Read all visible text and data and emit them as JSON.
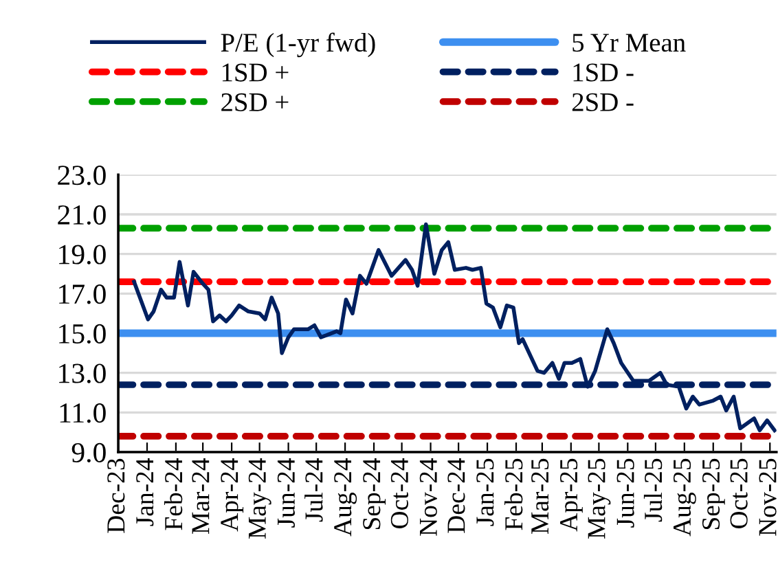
{
  "chart_data": {
    "type": "line",
    "legend": "top",
    "grid": "y",
    "line_style": "solid",
    "marker": "none",
    "ylim": [
      9.0,
      23.0
    ],
    "yticks": [
      {
        "value": 9,
        "label": "9.0"
      },
      {
        "value": 11,
        "label": "11.0"
      },
      {
        "value": 13,
        "label": "13.0"
      },
      {
        "value": 15,
        "label": "15.0"
      },
      {
        "value": 17,
        "label": "17.0"
      },
      {
        "value": 19,
        "label": "19.0"
      },
      {
        "value": 21,
        "label": "21.0"
      },
      {
        "value": 23,
        "label": "23.0"
      }
    ],
    "xlim": [
      "2023-12-01",
      "2025-11-08"
    ],
    "xticks": [
      {
        "value": "2023-12-01",
        "label": "Dec-23"
      },
      {
        "value": "2024-01-01",
        "label": "Jan-24"
      },
      {
        "value": "2024-02-01",
        "label": "Feb-24"
      },
      {
        "value": "2024-03-01",
        "label": "Mar-24"
      },
      {
        "value": "2024-04-01",
        "label": "Apr-24"
      },
      {
        "value": "2024-05-01",
        "label": "May-24"
      },
      {
        "value": "2024-06-01",
        "label": "Jun-24"
      },
      {
        "value": "2024-07-01",
        "label": "Jul-24"
      },
      {
        "value": "2024-08-01",
        "label": "Aug-24"
      },
      {
        "value": "2024-09-01",
        "label": "Sep-24"
      },
      {
        "value": "2024-10-01",
        "label": "Oct-24"
      },
      {
        "value": "2024-11-01",
        "label": "Nov-24"
      },
      {
        "value": "2024-12-01",
        "label": "Dec-24"
      },
      {
        "value": "2025-01-01",
        "label": "Jan-25"
      },
      {
        "value": "2025-02-01",
        "label": "Feb-25"
      },
      {
        "value": "2025-03-01",
        "label": "Mar-25"
      },
      {
        "value": "2025-04-01",
        "label": "Apr-25"
      },
      {
        "value": "2025-05-01",
        "label": "May-25"
      },
      {
        "value": "2025-06-01",
        "label": "Jun-25"
      },
      {
        "value": "2025-07-01",
        "label": "Jul-25"
      },
      {
        "value": "2025-08-01",
        "label": "Aug-25"
      },
      {
        "value": "2025-09-01",
        "label": "Sep-25"
      },
      {
        "value": "2025-10-01",
        "label": "Oct-25"
      },
      {
        "value": "2025-11-01",
        "label": "Nov-25"
      }
    ],
    "series": [
      {
        "name": "P/E (1-yr fwd)",
        "color": "#002060",
        "x": [
          "2023-12-18",
          "2024-01-02",
          "2024-01-08",
          "2024-01-16",
          "2024-01-22",
          "2024-01-30",
          "2024-02-05",
          "2024-02-14",
          "2024-02-20",
          "2024-03-01",
          "2024-03-07",
          "2024-03-12",
          "2024-03-19",
          "2024-03-26",
          "2024-04-01",
          "2024-04-09",
          "2024-04-19",
          "2024-05-01",
          "2024-05-07",
          "2024-05-14",
          "2024-05-21",
          "2024-05-25",
          "2024-06-01",
          "2024-06-07",
          "2024-06-22",
          "2024-06-29",
          "2024-07-06",
          "2024-07-12",
          "2024-07-23",
          "2024-07-27",
          "2024-08-02",
          "2024-08-09",
          "2024-08-17",
          "2024-08-24",
          "2024-09-06",
          "2024-09-20",
          "2024-10-05",
          "2024-10-12",
          "2024-10-18",
          "2024-10-27",
          "2024-11-05",
          "2024-11-13",
          "2024-11-20",
          "2024-11-27",
          "2024-12-09",
          "2024-12-16",
          "2024-12-25",
          "2024-12-31",
          "2025-01-07",
          "2025-01-15",
          "2025-01-22",
          "2025-01-29",
          "2025-02-04",
          "2025-02-08",
          "2025-02-24",
          "2025-03-03",
          "2025-03-12",
          "2025-03-19",
          "2025-03-25",
          "2025-04-02",
          "2025-04-11",
          "2025-04-19",
          "2025-04-27",
          "2025-05-10",
          "2025-05-17",
          "2025-05-25",
          "2025-06-07",
          "2025-06-24",
          "2025-07-06",
          "2025-07-13",
          "2025-07-26",
          "2025-08-03",
          "2025-08-10",
          "2025-08-17",
          "2025-09-01",
          "2025-09-09",
          "2025-09-15",
          "2025-09-23",
          "2025-09-30",
          "2025-10-09",
          "2025-10-15",
          "2025-10-21",
          "2025-10-29",
          "2025-11-06"
        ],
        "values": [
          17.6,
          15.7,
          16.1,
          17.2,
          16.8,
          16.8,
          18.6,
          16.4,
          18.1,
          17.5,
          17.2,
          15.6,
          15.9,
          15.6,
          15.9,
          16.4,
          16.1,
          16.0,
          15.7,
          16.8,
          16.0,
          14.0,
          14.8,
          15.2,
          15.2,
          15.4,
          14.8,
          14.9,
          15.1,
          15.0,
          16.7,
          16.0,
          17.9,
          17.5,
          19.2,
          17.9,
          18.7,
          18.2,
          17.4,
          20.5,
          18.0,
          19.2,
          19.6,
          18.2,
          18.3,
          18.2,
          18.3,
          16.5,
          16.3,
          15.3,
          16.4,
          16.3,
          14.5,
          14.7,
          13.1,
          13.0,
          13.5,
          12.7,
          13.5,
          13.5,
          13.7,
          12.3,
          13.1,
          15.2,
          14.5,
          13.5,
          12.6,
          12.6,
          13.0,
          12.4,
          12.3,
          11.2,
          11.8,
          11.4,
          11.6,
          11.8,
          11.1,
          11.8,
          10.2,
          10.5,
          10.7,
          10.1,
          10.6,
          10.1
        ]
      }
    ],
    "ref_lines": [
      {
        "axis": "y",
        "value": 15.0,
        "label": "5 Yr Mean",
        "color": "#3d8ff0",
        "line_style": "solid"
      },
      {
        "axis": "y",
        "value": 17.6,
        "label": "1SD +",
        "color": "#ff0000",
        "line_style": "dashed"
      },
      {
        "axis": "y",
        "value": 12.4,
        "label": "1SD -",
        "color": "#002060",
        "line_style": "dashed"
      },
      {
        "axis": "y",
        "value": 20.3,
        "label": "2SD +",
        "color": "#00a000",
        "line_style": "dashed"
      },
      {
        "axis": "y",
        "value": 9.8,
        "label": "2SD -",
        "color": "#c00000",
        "line_style": "dashed"
      }
    ]
  }
}
